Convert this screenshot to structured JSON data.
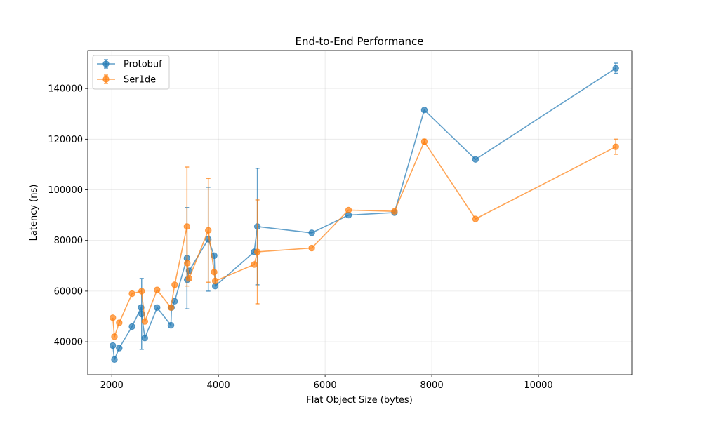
{
  "chart_data": {
    "type": "line",
    "title": "End-to-End Performance",
    "xlabel": "Flat Object Size (bytes)",
    "ylabel": "Latency (ns)",
    "xlim": [
      1550,
      11750
    ],
    "ylim": [
      27000,
      155000
    ],
    "xticks": [
      2000,
      4000,
      6000,
      8000,
      10000
    ],
    "yticks": [
      40000,
      60000,
      80000,
      100000,
      120000,
      140000
    ],
    "xtick_labels": [
      "2000",
      "4000",
      "6000",
      "8000",
      "10000"
    ],
    "ytick_labels": [
      "40000",
      "60000",
      "80000",
      "100000",
      "120000",
      "140000"
    ],
    "grid": true,
    "legend_position": "top-left",
    "series": [
      {
        "name": "Protobuf",
        "color": "#1f77b4",
        "points": [
          {
            "x": 2020,
            "y": 38500,
            "err": 0
          },
          {
            "x": 2050,
            "y": 33000,
            "err": 0
          },
          {
            "x": 2140,
            "y": 37500,
            "err": 0
          },
          {
            "x": 2380,
            "y": 46000,
            "err": 0
          },
          {
            "x": 2550,
            "y": 53500,
            "err": 0
          },
          {
            "x": 2560,
            "y": 51000,
            "err": 14000
          },
          {
            "x": 2620,
            "y": 41500,
            "err": 0
          },
          {
            "x": 2850,
            "y": 53500,
            "err": 0
          },
          {
            "x": 3110,
            "y": 46500,
            "err": 0
          },
          {
            "x": 3120,
            "y": 53500,
            "err": 0
          },
          {
            "x": 3180,
            "y": 56000,
            "err": 0
          },
          {
            "x": 3410,
            "y": 73000,
            "err": 20000
          },
          {
            "x": 3415,
            "y": 64500,
            "err": 0
          },
          {
            "x": 3450,
            "y": 68000,
            "err": 0
          },
          {
            "x": 3810,
            "y": 80500,
            "err": 20500
          },
          {
            "x": 3920,
            "y": 74000,
            "err": 0
          },
          {
            "x": 3940,
            "y": 62000,
            "err": 0
          },
          {
            "x": 4670,
            "y": 75500,
            "err": 0
          },
          {
            "x": 4730,
            "y": 85500,
            "err": 23000
          },
          {
            "x": 5750,
            "y": 83000,
            "err": 0
          },
          {
            "x": 6440,
            "y": 90000,
            "err": 0
          },
          {
            "x": 7300,
            "y": 91000,
            "err": 0
          },
          {
            "x": 7860,
            "y": 131500,
            "err": 0
          },
          {
            "x": 8820,
            "y": 112000,
            "err": 0
          },
          {
            "x": 11450,
            "y": 148000,
            "err": 2000
          }
        ]
      },
      {
        "name": "Ser1de",
        "color": "#ff7f0e",
        "points": [
          {
            "x": 2020,
            "y": 49500,
            "err": 0
          },
          {
            "x": 2050,
            "y": 42000,
            "err": 0
          },
          {
            "x": 2140,
            "y": 47500,
            "err": 0
          },
          {
            "x": 2380,
            "y": 59000,
            "err": 0
          },
          {
            "x": 2560,
            "y": 60000,
            "err": 0
          },
          {
            "x": 2620,
            "y": 48000,
            "err": 0
          },
          {
            "x": 2850,
            "y": 60500,
            "err": 0
          },
          {
            "x": 3110,
            "y": 53500,
            "err": 0
          },
          {
            "x": 3180,
            "y": 62500,
            "err": 0
          },
          {
            "x": 3410,
            "y": 85500,
            "err": 23500
          },
          {
            "x": 3415,
            "y": 71000,
            "err": 0
          },
          {
            "x": 3450,
            "y": 65000,
            "err": 0
          },
          {
            "x": 3810,
            "y": 84000,
            "err": 20500
          },
          {
            "x": 3920,
            "y": 67500,
            "err": 0
          },
          {
            "x": 3940,
            "y": 64000,
            "err": 0
          },
          {
            "x": 4670,
            "y": 70500,
            "err": 0
          },
          {
            "x": 4730,
            "y": 75500,
            "err": 20500
          },
          {
            "x": 5750,
            "y": 77000,
            "err": 0
          },
          {
            "x": 6440,
            "y": 92000,
            "err": 0
          },
          {
            "x": 7300,
            "y": 91500,
            "err": 0
          },
          {
            "x": 7860,
            "y": 119000,
            "err": 1000
          },
          {
            "x": 8820,
            "y": 88500,
            "err": 0
          },
          {
            "x": 11450,
            "y": 117000,
            "err": 3000
          }
        ]
      }
    ]
  }
}
